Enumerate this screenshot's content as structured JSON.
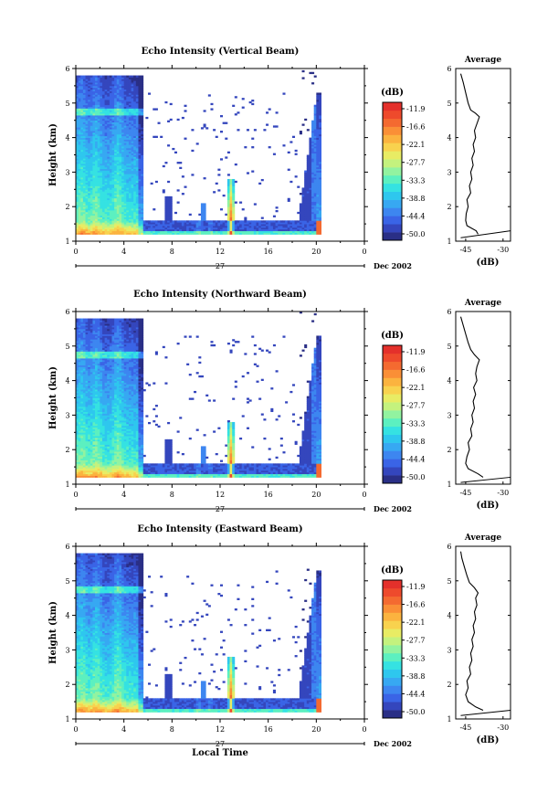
{
  "colorbar": {
    "unit": "(dB)",
    "ticks": [
      "-11.9",
      "-16.6",
      "-22.1",
      "-27.7",
      "-33.3",
      "-38.8",
      "-44.4",
      "-50.0"
    ],
    "colors": [
      "#2a2f86",
      "#3446bd",
      "#3a64e6",
      "#3d86f0",
      "#37a8f2",
      "#2ec7ee",
      "#35e2e2",
      "#5cf0c0",
      "#92f3a0",
      "#c4f27e",
      "#e8ec64",
      "#f8d24e",
      "#fbb33f",
      "#fa8f36",
      "#f46a30",
      "#ee4a2c",
      "#e4302b"
    ],
    "range": [
      -50.0,
      -11.9
    ]
  },
  "panels": [
    {
      "title": "Echo Intensity (Vertical Beam)",
      "ylabel": "Height (km)",
      "yticks": [
        "1",
        "2",
        "3",
        "4",
        "5",
        "6"
      ],
      "xticks": [
        "0",
        "4",
        "8",
        "12",
        "16",
        "20",
        "0"
      ],
      "date_tick": "27",
      "date_label": "Dec 2002",
      "avg": {
        "title": "Average",
        "xticks": [
          "-45",
          "-30"
        ],
        "xlabel": "(dB)",
        "yticks": [
          "1",
          "2",
          "3",
          "4",
          "5",
          "6"
        ],
        "profile": [
          [
            -40,
            1.2
          ],
          [
            -40.8,
            1.3
          ],
          [
            -44.5,
            1.45
          ],
          [
            -45,
            1.6
          ],
          [
            -44.8,
            1.8
          ],
          [
            -44,
            2.0
          ],
          [
            -44.5,
            2.2
          ],
          [
            -43,
            2.4
          ],
          [
            -43.5,
            2.6
          ],
          [
            -42.5,
            2.8
          ],
          [
            -43,
            3.0
          ],
          [
            -42,
            3.2
          ],
          [
            -42.5,
            3.4
          ],
          [
            -41.5,
            3.6
          ],
          [
            -42,
            3.8
          ],
          [
            -41,
            4.0
          ],
          [
            -41.5,
            4.2
          ],
          [
            -40.5,
            4.4
          ],
          [
            -39.5,
            4.6
          ],
          [
            -41,
            4.7
          ],
          [
            -43,
            4.8
          ],
          [
            -44,
            5.0
          ],
          [
            -45,
            5.3
          ],
          [
            -46,
            5.6
          ],
          [
            -47,
            5.85
          ]
        ],
        "line": [
          [
            -47,
            1.1
          ],
          [
            -38,
            1.3
          ]
        ]
      },
      "chart_data": {
        "type": "heatmap",
        "title": "Echo Intensity (Vertical Beam)",
        "xlabel": "",
        "ylabel": "Height (km)",
        "xlim": [
          0,
          24
        ],
        "ylim": [
          1,
          6
        ],
        "zlim": [
          -50.0,
          -11.9
        ]
      }
    },
    {
      "title": "Echo Intensity (Northward Beam)",
      "ylabel": "Height (km)",
      "yticks": [
        "1",
        "2",
        "3",
        "4",
        "5",
        "6"
      ],
      "xticks": [
        "0",
        "4",
        "8",
        "12",
        "16",
        "20",
        "0"
      ],
      "date_tick": "27",
      "date_label": "Dec 2002",
      "avg": {
        "title": "Average",
        "xticks": [
          "-45",
          "-30"
        ],
        "xlabel": "(dB)",
        "yticks": [
          "1",
          "2",
          "3",
          "4",
          "5",
          "6"
        ],
        "profile": [
          [
            -38,
            1.2
          ],
          [
            -40,
            1.3
          ],
          [
            -44,
            1.45
          ],
          [
            -45,
            1.6
          ],
          [
            -44.5,
            1.8
          ],
          [
            -43.5,
            2.0
          ],
          [
            -44,
            2.2
          ],
          [
            -42.5,
            2.4
          ],
          [
            -43,
            2.6
          ],
          [
            -42,
            2.8
          ],
          [
            -42.5,
            3.0
          ],
          [
            -41.5,
            3.2
          ],
          [
            -42,
            3.4
          ],
          [
            -41,
            3.6
          ],
          [
            -41.8,
            3.8
          ],
          [
            -40.5,
            4.0
          ],
          [
            -41,
            4.2
          ],
          [
            -40.5,
            4.4
          ],
          [
            -39.5,
            4.6
          ],
          [
            -41.5,
            4.75
          ],
          [
            -43,
            4.9
          ],
          [
            -44,
            5.1
          ],
          [
            -45,
            5.35
          ],
          [
            -46,
            5.6
          ],
          [
            -47,
            5.85
          ]
        ],
        "line": [
          [
            -47,
            1.05
          ],
          [
            -38,
            1.2
          ]
        ]
      },
      "chart_data": {
        "type": "heatmap",
        "title": "Echo Intensity (Northward Beam)",
        "xlabel": "",
        "ylabel": "Height (km)",
        "xlim": [
          0,
          24
        ],
        "ylim": [
          1,
          6
        ],
        "zlim": [
          -50.0,
          -11.9
        ]
      }
    },
    {
      "title": "Echo Intensity (Eastward Beam)",
      "ylabel": "Height (km)",
      "xlabel": "Local Time",
      "yticks": [
        "1",
        "2",
        "3",
        "4",
        "5",
        "6"
      ],
      "xticks": [
        "0",
        "4",
        "8",
        "12",
        "16",
        "20",
        "0"
      ],
      "date_tick": "27",
      "date_label": "Dec 2002",
      "avg": {
        "title": "Average",
        "xticks": [
          "-45",
          "-30"
        ],
        "xlabel": "(dB)",
        "yticks": [
          "1",
          "2",
          "3",
          "4",
          "5",
          "6"
        ],
        "profile": [
          [
            -38,
            1.25
          ],
          [
            -41,
            1.35
          ],
          [
            -44,
            1.5
          ],
          [
            -45,
            1.7
          ],
          [
            -44,
            1.9
          ],
          [
            -44.5,
            2.1
          ],
          [
            -43,
            2.3
          ],
          [
            -43.5,
            2.5
          ],
          [
            -42.5,
            2.7
          ],
          [
            -43,
            2.9
          ],
          [
            -42,
            3.1
          ],
          [
            -42.5,
            3.3
          ],
          [
            -41.5,
            3.5
          ],
          [
            -42,
            3.7
          ],
          [
            -41,
            3.9
          ],
          [
            -41.5,
            4.1
          ],
          [
            -40.5,
            4.3
          ],
          [
            -41,
            4.5
          ],
          [
            -40,
            4.65
          ],
          [
            -41.5,
            4.8
          ],
          [
            -43.5,
            4.95
          ],
          [
            -44.5,
            5.15
          ],
          [
            -45.5,
            5.4
          ],
          [
            -46.5,
            5.65
          ],
          [
            -47,
            5.85
          ]
        ],
        "line": [
          [
            -47,
            1.1
          ],
          [
            -38,
            1.25
          ]
        ]
      },
      "chart_data": {
        "type": "heatmap",
        "title": "Echo Intensity (Eastward Beam)",
        "xlabel": "Local Time",
        "ylabel": "Height (km)",
        "xlim": [
          0,
          24
        ],
        "ylim": [
          1,
          6
        ],
        "zlim": [
          -50.0,
          -11.9
        ]
      }
    }
  ]
}
